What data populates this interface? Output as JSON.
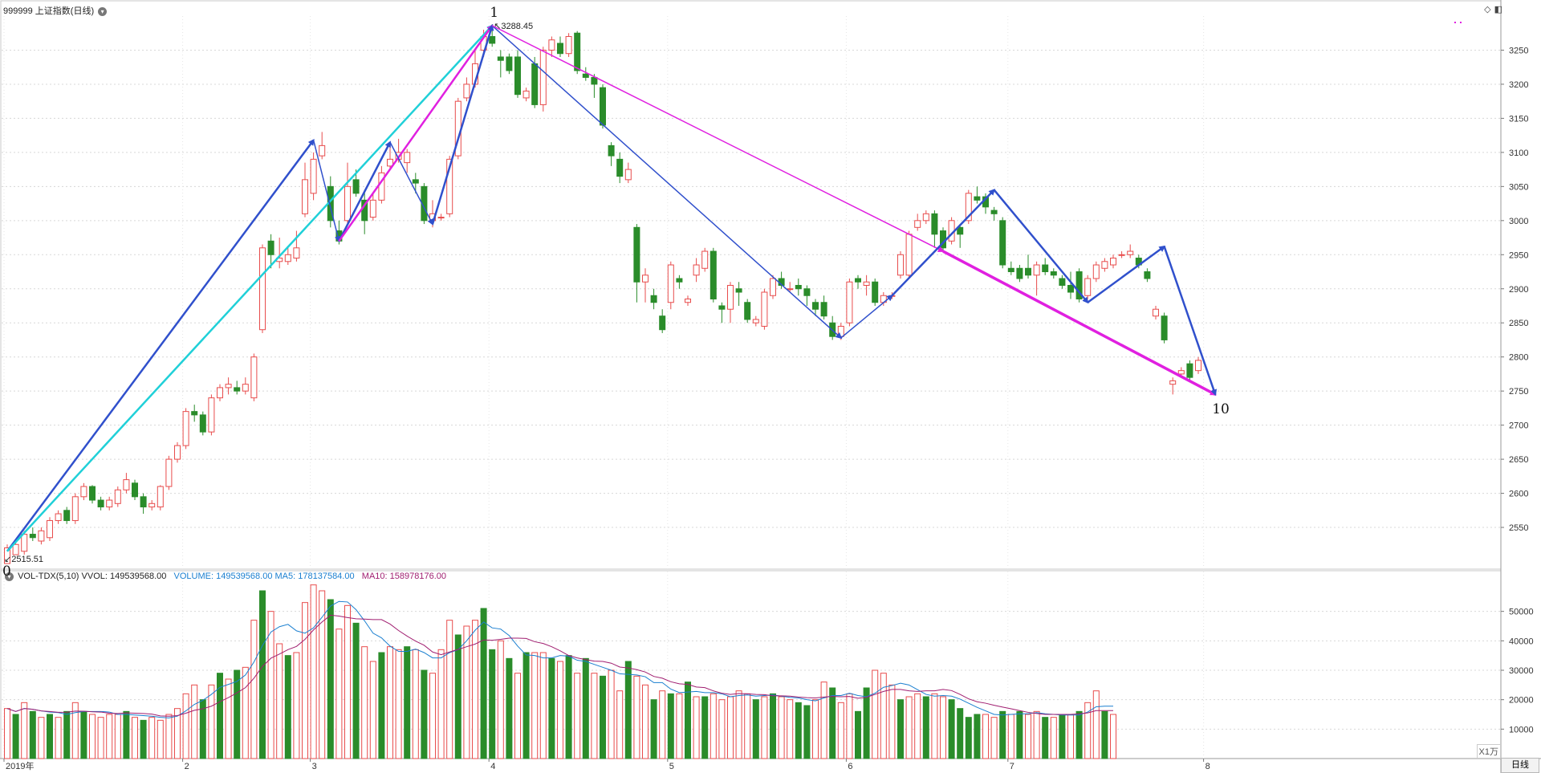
{
  "header": {
    "code": "999999",
    "name": "上证指数",
    "period": "(日线)",
    "vol_title": "VOL-TDX(5,10)",
    "vvol": "VVOL: 149539568.00",
    "volume": "VOLUME: 149539568.00",
    "ma5": "MA5: 178137584.00",
    "ma10": "MA10: 158978176.00"
  },
  "period_tab": "日线",
  "vol_unit": "X1万",
  "price_labels": {
    "max": "3288.45",
    "min": "2515.51"
  },
  "wave_labels": [
    "0",
    "1",
    "10"
  ],
  "colors": {
    "up": "#e84c4c",
    "down": "#2a8c2a",
    "blue": "#3050cc",
    "magenta": "#e020e0",
    "cyan": "#20d0d8",
    "ma5": "#1a7fd0",
    "ma10": "#a01e70"
  },
  "chart_data": {
    "type": "candlestick",
    "price_ticks": [
      2550,
      2600,
      2650,
      2700,
      2750,
      2800,
      2850,
      2900,
      2950,
      3000,
      3050,
      3100,
      3150,
      3200,
      3250
    ],
    "volume_ticks": [
      10000,
      20000,
      30000,
      40000,
      50000
    ],
    "ylim_price": [
      2490,
      3300
    ],
    "ylim_volume": [
      0,
      60000
    ],
    "x_labels": [
      {
        "i": 0,
        "label": "2019年"
      },
      {
        "i": 21,
        "label": "2"
      },
      {
        "i": 36,
        "label": "3"
      },
      {
        "i": 57,
        "label": "4"
      },
      {
        "i": 78,
        "label": "5"
      },
      {
        "i": 99,
        "label": "6"
      },
      {
        "i": 118,
        "label": "7"
      },
      {
        "i": 141,
        "label": "8"
      }
    ],
    "candles": [
      [
        2497,
        2520,
        2510,
        2525
      ],
      [
        2510,
        2525,
        2528,
        2515
      ],
      [
        2515,
        2540,
        2545,
        2510
      ],
      [
        2540,
        2535,
        2550,
        2530
      ],
      [
        2530,
        2545,
        2550,
        2525
      ],
      [
        2535,
        2560,
        2565,
        2530
      ],
      [
        2560,
        2570,
        2575,
        2555
      ],
      [
        2575,
        2560,
        2580,
        2555
      ],
      [
        2560,
        2595,
        2600,
        2555
      ],
      [
        2595,
        2610,
        2615,
        2590
      ],
      [
        2610,
        2590,
        2612,
        2585
      ],
      [
        2590,
        2580,
        2595,
        2575
      ],
      [
        2580,
        2590,
        2595,
        2575
      ],
      [
        2585,
        2605,
        2610,
        2580
      ],
      [
        2605,
        2620,
        2630,
        2600
      ],
      [
        2615,
        2595,
        2620,
        2590
      ],
      [
        2595,
        2580,
        2600,
        2570
      ],
      [
        2580,
        2585,
        2590,
        2575
      ],
      [
        2580,
        2610,
        2612,
        2575
      ],
      [
        2610,
        2650,
        2655,
        2605
      ],
      [
        2650,
        2670,
        2675,
        2645
      ],
      [
        2670,
        2720,
        2725,
        2665
      ],
      [
        2720,
        2715,
        2730,
        2705
      ],
      [
        2715,
        2690,
        2720,
        2685
      ],
      [
        2690,
        2740,
        2745,
        2685
      ],
      [
        2740,
        2755,
        2760,
        2735
      ],
      [
        2755,
        2760,
        2770,
        2745
      ],
      [
        2755,
        2750,
        2765,
        2745
      ],
      [
        2750,
        2760,
        2770,
        2745
      ],
      [
        2740,
        2800,
        2805,
        2735
      ],
      [
        2840,
        2960,
        2965,
        2835
      ],
      [
        2970,
        2950,
        2980,
        2930
      ],
      [
        2940,
        2945,
        2975,
        2930
      ],
      [
        2940,
        2950,
        2960,
        2935
      ],
      [
        2945,
        2960,
        2985,
        2940
      ],
      [
        3010,
        3060,
        3085,
        3005
      ],
      [
        3040,
        3090,
        3100,
        3030
      ],
      [
        3095,
        3110,
        3130,
        3090
      ],
      [
        3050,
        3000,
        3065,
        2990
      ],
      [
        2985,
        2970,
        3000,
        2965
      ],
      [
        3000,
        3050,
        3085,
        2995
      ],
      [
        3060,
        3040,
        3075,
        3035
      ],
      [
        3030,
        3000,
        3045,
        2980
      ],
      [
        3005,
        3030,
        3040,
        3000
      ],
      [
        3030,
        3070,
        3080,
        3025
      ],
      [
        3080,
        3090,
        3110,
        3075
      ],
      [
        3090,
        3100,
        3120,
        3085
      ],
      [
        3085,
        3100,
        3105,
        3070
      ],
      [
        3060,
        3055,
        3070,
        3040
      ],
      [
        3050,
        3000,
        3055,
        2995
      ],
      [
        3000,
        3010,
        3030,
        2990
      ],
      [
        3005,
        3005,
        3010,
        3000
      ],
      [
        3010,
        3090,
        3095,
        3005
      ],
      [
        3095,
        3175,
        3180,
        3090
      ],
      [
        3180,
        3200,
        3210,
        3175
      ],
      [
        3200,
        3230,
        3250,
        3195
      ],
      [
        3250,
        3270,
        3280,
        3240
      ],
      [
        3270,
        3260,
        3288,
        3255
      ],
      [
        3240,
        3235,
        3250,
        3210
      ],
      [
        3240,
        3220,
        3245,
        3215
      ],
      [
        3240,
        3185,
        3250,
        3180
      ],
      [
        3180,
        3190,
        3195,
        3175
      ],
      [
        3230,
        3170,
        3240,
        3165
      ],
      [
        3170,
        3250,
        3255,
        3160
      ],
      [
        3250,
        3265,
        3270,
        3240
      ],
      [
        3260,
        3245,
        3270,
        3240
      ],
      [
        3245,
        3270,
        3275,
        3240
      ],
      [
        3275,
        3220,
        3278,
        3215
      ],
      [
        3215,
        3210,
        3225,
        3205
      ],
      [
        3210,
        3200,
        3215,
        3180
      ],
      [
        3195,
        3140,
        3200,
        3135
      ],
      [
        3110,
        3095,
        3115,
        3080
      ],
      [
        3090,
        3065,
        3100,
        3055
      ],
      [
        3060,
        3075,
        3085,
        3055
      ],
      [
        2990,
        2910,
        2995,
        2880
      ],
      [
        2910,
        2920,
        2930,
        2880
      ],
      [
        2890,
        2880,
        2900,
        2870
      ],
      [
        2860,
        2840,
        2870,
        2835
      ],
      [
        2880,
        2935,
        2940,
        2870
      ],
      [
        2915,
        2910,
        2920,
        2900
      ],
      [
        2880,
        2885,
        2890,
        2875
      ],
      [
        2920,
        2935,
        2945,
        2910
      ],
      [
        2930,
        2955,
        2960,
        2925
      ],
      [
        2955,
        2885,
        2960,
        2880
      ],
      [
        2875,
        2870,
        2880,
        2850
      ],
      [
        2870,
        2905,
        2910,
        2850
      ],
      [
        2900,
        2895,
        2910,
        2875
      ],
      [
        2880,
        2855,
        2885,
        2850
      ],
      [
        2850,
        2855,
        2860,
        2845
      ],
      [
        2845,
        2895,
        2900,
        2840
      ],
      [
        2890,
        2915,
        2920,
        2885
      ],
      [
        2915,
        2905,
        2925,
        2900
      ],
      [
        2900,
        2900,
        2910,
        2895
      ],
      [
        2905,
        2900,
        2915,
        2890
      ],
      [
        2900,
        2890,
        2905,
        2875
      ],
      [
        2880,
        2870,
        2885,
        2860
      ],
      [
        2880,
        2860,
        2890,
        2855
      ],
      [
        2850,
        2830,
        2860,
        2825
      ],
      [
        2830,
        2845,
        2850,
        2825
      ],
      [
        2850,
        2910,
        2915,
        2845
      ],
      [
        2915,
        2910,
        2920,
        2900
      ],
      [
        2905,
        2910,
        2920,
        2890
      ],
      [
        2910,
        2880,
        2915,
        2875
      ],
      [
        2880,
        2890,
        2895,
        2875
      ],
      [
        2890,
        2890,
        2895,
        2885
      ],
      [
        2920,
        2950,
        2955,
        2915
      ],
      [
        2920,
        2980,
        2985,
        2915
      ],
      [
        2990,
        3000,
        3010,
        2985
      ],
      [
        3000,
        3010,
        3015,
        2995
      ],
      [
        3010,
        2980,
        3015,
        2960
      ],
      [
        2985,
        2960,
        2990,
        2955
      ],
      [
        2970,
        3000,
        3005,
        2965
      ],
      [
        2990,
        2980,
        2995,
        2960
      ],
      [
        3000,
        3040,
        3045,
        2995
      ],
      [
        3035,
        3030,
        3050,
        3025
      ],
      [
        3035,
        3020,
        3040,
        3010
      ],
      [
        3015,
        3010,
        3020,
        3000
      ],
      [
        3000,
        2935,
        3005,
        2930
      ],
      [
        2930,
        2925,
        2940,
        2920
      ],
      [
        2930,
        2915,
        2935,
        2910
      ],
      [
        2930,
        2920,
        2950,
        2915
      ],
      [
        2920,
        2935,
        2940,
        2890
      ],
      [
        2935,
        2925,
        2945,
        2920
      ],
      [
        2925,
        2920,
        2930,
        2915
      ],
      [
        2915,
        2905,
        2920,
        2900
      ],
      [
        2905,
        2895,
        2925,
        2885
      ],
      [
        2925,
        2885,
        2930,
        2880
      ],
      [
        2890,
        2915,
        2920,
        2885
      ],
      [
        2915,
        2935,
        2940,
        2910
      ],
      [
        2930,
        2940,
        2945,
        2925
      ],
      [
        2935,
        2945,
        2950,
        2930
      ],
      [
        2950,
        2950,
        2955,
        2945
      ],
      [
        2950,
        2955,
        2965,
        2945
      ],
      [
        2945,
        2935,
        2950,
        2930
      ],
      [
        2925,
        2915,
        2930,
        2910
      ],
      [
        2860,
        2870,
        2875,
        2855
      ],
      [
        2860,
        2825,
        2865,
        2820
      ],
      [
        2760,
        2765,
        2770,
        2745
      ],
      [
        2775,
        2780,
        2785,
        2770
      ],
      [
        2790,
        2770,
        2795,
        2765
      ],
      [
        2780,
        2795,
        2800,
        2775
      ]
    ],
    "volumes": [
      [
        17000,
        1
      ],
      [
        15000,
        0
      ],
      [
        19000,
        1
      ],
      [
        16000,
        0
      ],
      [
        14000,
        1
      ],
      [
        15000,
        0
      ],
      [
        14000,
        1
      ],
      [
        16000,
        0
      ],
      [
        19000,
        1
      ],
      [
        16000,
        0
      ],
      [
        15000,
        1
      ],
      [
        14000,
        1
      ],
      [
        15000,
        1
      ],
      [
        15000,
        1
      ],
      [
        16000,
        0
      ],
      [
        14000,
        1
      ],
      [
        13000,
        0
      ],
      [
        14000,
        1
      ],
      [
        13000,
        1
      ],
      [
        15000,
        1
      ],
      [
        17000,
        1
      ],
      [
        22000,
        1
      ],
      [
        25000,
        1
      ],
      [
        20000,
        0
      ],
      [
        25000,
        1
      ],
      [
        29000,
        0
      ],
      [
        27000,
        1
      ],
      [
        30000,
        0
      ],
      [
        31000,
        1
      ],
      [
        47000,
        1
      ],
      [
        57000,
        0
      ],
      [
        50000,
        1
      ],
      [
        39000,
        1
      ],
      [
        35000,
        0
      ],
      [
        36000,
        1
      ],
      [
        53000,
        1
      ],
      [
        59000,
        1
      ],
      [
        57000,
        1
      ],
      [
        54000,
        0
      ],
      [
        44000,
        1
      ],
      [
        52000,
        1
      ],
      [
        46000,
        0
      ],
      [
        38000,
        1
      ],
      [
        33000,
        1
      ],
      [
        36000,
        0
      ],
      [
        38000,
        1
      ],
      [
        37000,
        1
      ],
      [
        38000,
        0
      ],
      [
        37000,
        1
      ],
      [
        30000,
        0
      ],
      [
        29000,
        1
      ],
      [
        37000,
        1
      ],
      [
        47000,
        1
      ],
      [
        42000,
        0
      ],
      [
        45000,
        1
      ],
      [
        47000,
        1
      ],
      [
        51000,
        0
      ],
      [
        37000,
        0
      ],
      [
        40000,
        1
      ],
      [
        34000,
        0
      ],
      [
        29000,
        1
      ],
      [
        36000,
        0
      ],
      [
        36000,
        1
      ],
      [
        36000,
        1
      ],
      [
        34000,
        0
      ],
      [
        33000,
        1
      ],
      [
        35000,
        0
      ],
      [
        29000,
        1
      ],
      [
        34000,
        0
      ],
      [
        29000,
        1
      ],
      [
        28000,
        0
      ],
      [
        30000,
        1
      ],
      [
        23000,
        1
      ],
      [
        33000,
        0
      ],
      [
        28000,
        1
      ],
      [
        25000,
        1
      ],
      [
        20000,
        0
      ],
      [
        23000,
        1
      ],
      [
        22000,
        0
      ],
      [
        22000,
        1
      ],
      [
        26000,
        0
      ],
      [
        21000,
        1
      ],
      [
        21000,
        0
      ],
      [
        22000,
        1
      ],
      [
        20000,
        1
      ],
      [
        21000,
        1
      ],
      [
        23000,
        1
      ],
      [
        22000,
        1
      ],
      [
        20000,
        0
      ],
      [
        21000,
        1
      ],
      [
        22000,
        0
      ],
      [
        21000,
        1
      ],
      [
        20000,
        1
      ],
      [
        19000,
        0
      ],
      [
        18000,
        0
      ],
      [
        20000,
        1
      ],
      [
        26000,
        1
      ],
      [
        24000,
        0
      ],
      [
        19000,
        1
      ],
      [
        22000,
        1
      ],
      [
        16000,
        0
      ],
      [
        24000,
        0
      ],
      [
        30000,
        1
      ],
      [
        29000,
        1
      ],
      [
        25000,
        1
      ],
      [
        20000,
        0
      ],
      [
        21000,
        1
      ],
      [
        22000,
        1
      ],
      [
        21000,
        0
      ],
      [
        22000,
        1
      ],
      [
        21000,
        1
      ],
      [
        20000,
        0
      ],
      [
        17000,
        0
      ],
      [
        14000,
        0
      ],
      [
        15000,
        0
      ],
      [
        15000,
        1
      ],
      [
        14000,
        1
      ],
      [
        16000,
        0
      ],
      [
        15000,
        1
      ],
      [
        16000,
        0
      ],
      [
        15000,
        1
      ],
      [
        16000,
        1
      ],
      [
        14000,
        0
      ],
      [
        14000,
        1
      ],
      [
        15000,
        0
      ],
      [
        15000,
        1
      ],
      [
        16000,
        0
      ],
      [
        19000,
        1
      ],
      [
        23000,
        1
      ],
      [
        16000,
        0
      ],
      [
        15000,
        1
      ]
    ],
    "arrows": [
      {
        "color": "blue",
        "w": 2.5,
        "from": [
          0,
          2515
        ],
        "to": [
          36,
          3118
        ]
      },
      {
        "color": "cyan",
        "w": 2.5,
        "from": [
          0,
          2515
        ],
        "to": [
          57,
          3286
        ]
      },
      {
        "color": "blue",
        "w": 1.5,
        "from": [
          36,
          3118
        ],
        "to": [
          39,
          2970
        ]
      },
      {
        "color": "blue",
        "w": 2.5,
        "from": [
          39,
          2970
        ],
        "to": [
          45,
          3115
        ]
      },
      {
        "color": "magenta",
        "w": 2.5,
        "from": [
          39,
          2970
        ],
        "to": [
          57,
          3286
        ]
      },
      {
        "color": "blue",
        "w": 1.5,
        "from": [
          45,
          3115
        ],
        "to": [
          50,
          2995
        ]
      },
      {
        "color": "blue",
        "w": 2.5,
        "from": [
          50,
          2995
        ],
        "to": [
          57,
          3286
        ]
      },
      {
        "color": "blue",
        "w": 1.5,
        "from": [
          57,
          3286
        ],
        "to": [
          98,
          2828
        ]
      },
      {
        "color": "magenta",
        "w": 1.5,
        "from": [
          57,
          3286
        ],
        "to": [
          110,
          2955
        ]
      },
      {
        "color": "magenta",
        "w": 3.5,
        "from": [
          110,
          2955
        ],
        "to": [
          142,
          2745
        ]
      },
      {
        "color": "blue",
        "w": 1.5,
        "from": [
          98,
          2828
        ],
        "to": [
          104,
          2890
        ]
      },
      {
        "color": "blue",
        "w": 2.5,
        "from": [
          104,
          2890
        ],
        "to": [
          116,
          3045
        ]
      },
      {
        "color": "blue",
        "w": 2.5,
        "from": [
          116,
          3045
        ],
        "to": [
          127,
          2880
        ]
      },
      {
        "color": "blue",
        "w": 2.5,
        "from": [
          127,
          2880
        ],
        "to": [
          136,
          2962
        ]
      },
      {
        "color": "blue",
        "w": 2.5,
        "from": [
          136,
          2962
        ],
        "to": [
          142,
          2745
        ]
      }
    ]
  }
}
